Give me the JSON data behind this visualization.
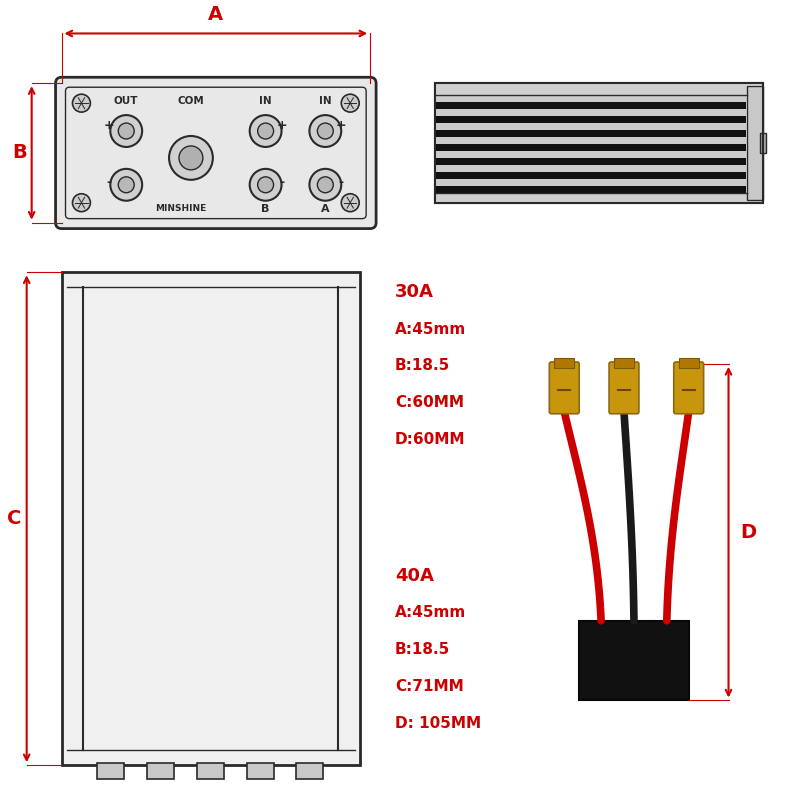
{
  "bg_color": "#ffffff",
  "line_color": "#2a2a2a",
  "red_color": "#cc0000",
  "specs_30A": [
    "30A",
    "A:45mm",
    "B:18.5",
    "C:60MM",
    "D:60MM"
  ],
  "specs_40A": [
    "40A",
    "A:45mm",
    "B:18.5",
    "C:71MM",
    "D: 105MM"
  ],
  "label_A": "A",
  "label_B": "B",
  "label_C": "C",
  "label_D": "D",
  "panel_label_out": "OUT",
  "panel_label_com": "COM",
  "panel_label_in": "IN",
  "panel_label_minshine": "MINSHINE",
  "panel_label_b": "B",
  "panel_label_a": "A"
}
